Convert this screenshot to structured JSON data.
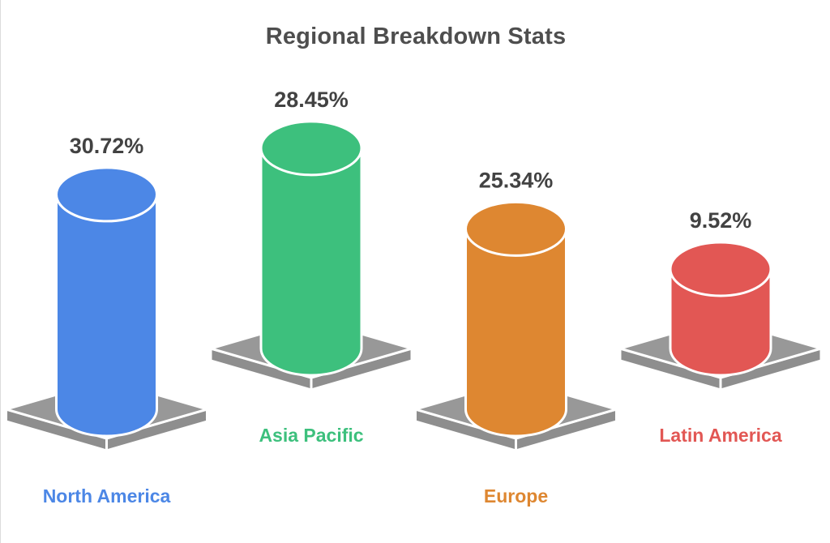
{
  "chart_data": {
    "type": "bar",
    "style": "3d-cylinder-infographic",
    "title": "Regional Breakdown Stats",
    "categories": [
      "North America",
      "Asia Pacific",
      "Europe",
      "Latin America"
    ],
    "values": [
      30.72,
      28.45,
      25.34,
      9.52
    ],
    "value_labels": [
      "30.72%",
      "28.45%",
      "25.34%",
      "9.52%"
    ],
    "series_colors": [
      "#4C87E6",
      "#3DC07D",
      "#DE8731",
      "#E25754"
    ],
    "title_color": "#4E4E4E",
    "value_label_color": "#424242",
    "pedestal_top_color": "#989898",
    "pedestal_side_color": "#8E8E8E",
    "background_color": "#FFFFFF",
    "unit": "%",
    "legend_position": "none",
    "grid": false,
    "axes": false,
    "layout": "alternating high-low pedestals, labels colored per series"
  }
}
